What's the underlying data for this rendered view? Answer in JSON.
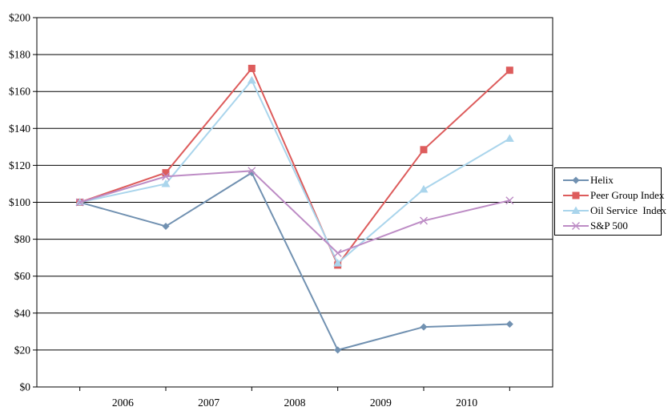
{
  "chart_data": {
    "type": "line",
    "title": "",
    "x_tick_labels": [
      "2006",
      "2007",
      "2008",
      "2009",
      "2010"
    ],
    "y_tick_labels": [
      "$0",
      "$20",
      "$40",
      "$60",
      "$80",
      "$100",
      "$120",
      "$140",
      "$160",
      "$180",
      "$200"
    ],
    "ylim": [
      0,
      200
    ],
    "y_step": 20,
    "points_per_series": 6,
    "grid": "horizontal",
    "legend_position": "right",
    "axis_color": "#000000",
    "background_color": "#ffffff",
    "series": [
      {
        "name": "Helix",
        "color": "#7191b1",
        "marker": "diamond",
        "values": [
          100,
          87,
          116,
          20,
          32.5,
          34
        ]
      },
      {
        "name": "Peer Group Index",
        "color": "#dd5c5c",
        "marker": "square",
        "values": [
          100,
          116,
          172.5,
          66,
          128.5,
          171.5
        ]
      },
      {
        "name": "Oil Service  Index",
        "color": "#aad5ec",
        "marker": "triangle",
        "values": [
          100,
          110,
          166,
          67,
          107,
          134.5
        ]
      },
      {
        "name": "S&P 500",
        "color": "#bd8cc5",
        "marker": "x",
        "values": [
          100,
          114,
          117,
          72.5,
          90,
          101
        ]
      }
    ]
  }
}
